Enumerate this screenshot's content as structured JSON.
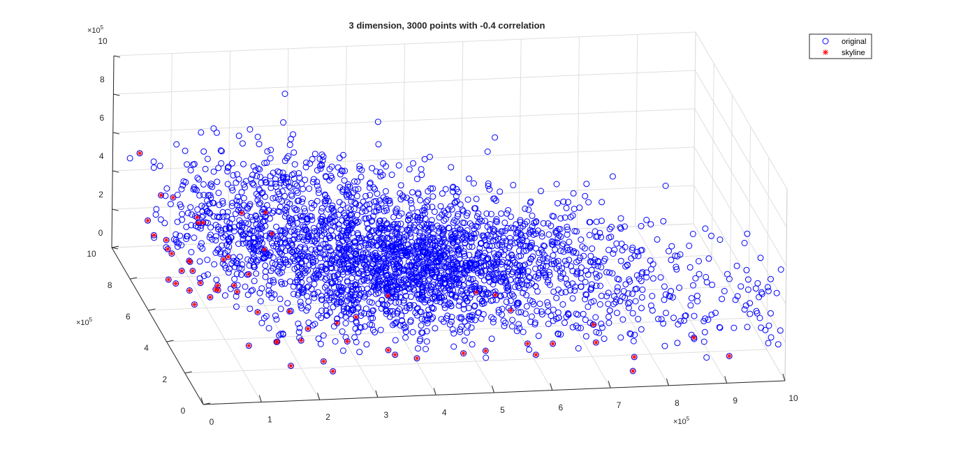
{
  "chart_data": {
    "type": "scatter",
    "title": "3 dimension, 3000 points with -0.4 correlation",
    "xlabel": "",
    "ylabel": "",
    "zlabel": "",
    "x_exponent_label": "×10",
    "x_exponent": "5",
    "y_exponent_label": "×10",
    "y_exponent": "5",
    "z_exponent_label": "×10",
    "z_exponent": "5",
    "xlim": [
      0,
      1000000
    ],
    "ylim": [
      0,
      1000000
    ],
    "zlim": [
      0,
      1000000
    ],
    "x_ticks": [
      "0",
      "1",
      "2",
      "3",
      "4",
      "5",
      "6",
      "7",
      "8",
      "9",
      "10"
    ],
    "y_ticks": [
      "0",
      "2",
      "4",
      "6",
      "8",
      "10"
    ],
    "z_ticks": [
      "0",
      "2",
      "4",
      "6",
      "8",
      "10"
    ],
    "grid": true,
    "view": "3d",
    "legend_position": "top-right",
    "series": [
      {
        "name": "original",
        "marker": "circle-open",
        "color": "#0000ff",
        "point_count": 3000,
        "correlation": -0.4,
        "distribution_note": ""
      },
      {
        "name": "skyline",
        "marker": "asterisk",
        "color": "#ff0000",
        "points": []
      }
    ]
  },
  "colors": {
    "original": "#0000ff",
    "skyline": "#ff0000",
    "grid": "#dedede",
    "axis": "#262626"
  }
}
